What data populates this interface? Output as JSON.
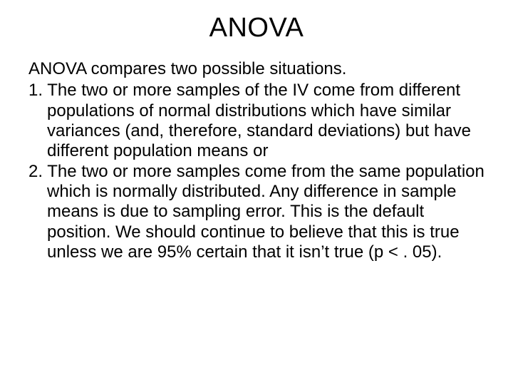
{
  "slide": {
    "title": "ANOVA",
    "intro": "ANOVA compares two possible situations.",
    "item1": "1.  The two or more samples of the IV come from different populations of normal distributions which have similar variances (and, therefore, standard deviations) but have different population means or",
    "item2": "2. The two or more samples come from the same population which is normally distributed. Any difference in sample means is due to sampling error. This  is the default position.  We should continue to believe that this is true unless  we are 95% certain that it isn’t true (p < . 05).",
    "colors": {
      "background": "#ffffff",
      "text": "#000000"
    },
    "typography": {
      "title_fontsize_pt": 29,
      "body_fontsize_pt": 18,
      "font_family": "Arial"
    }
  }
}
